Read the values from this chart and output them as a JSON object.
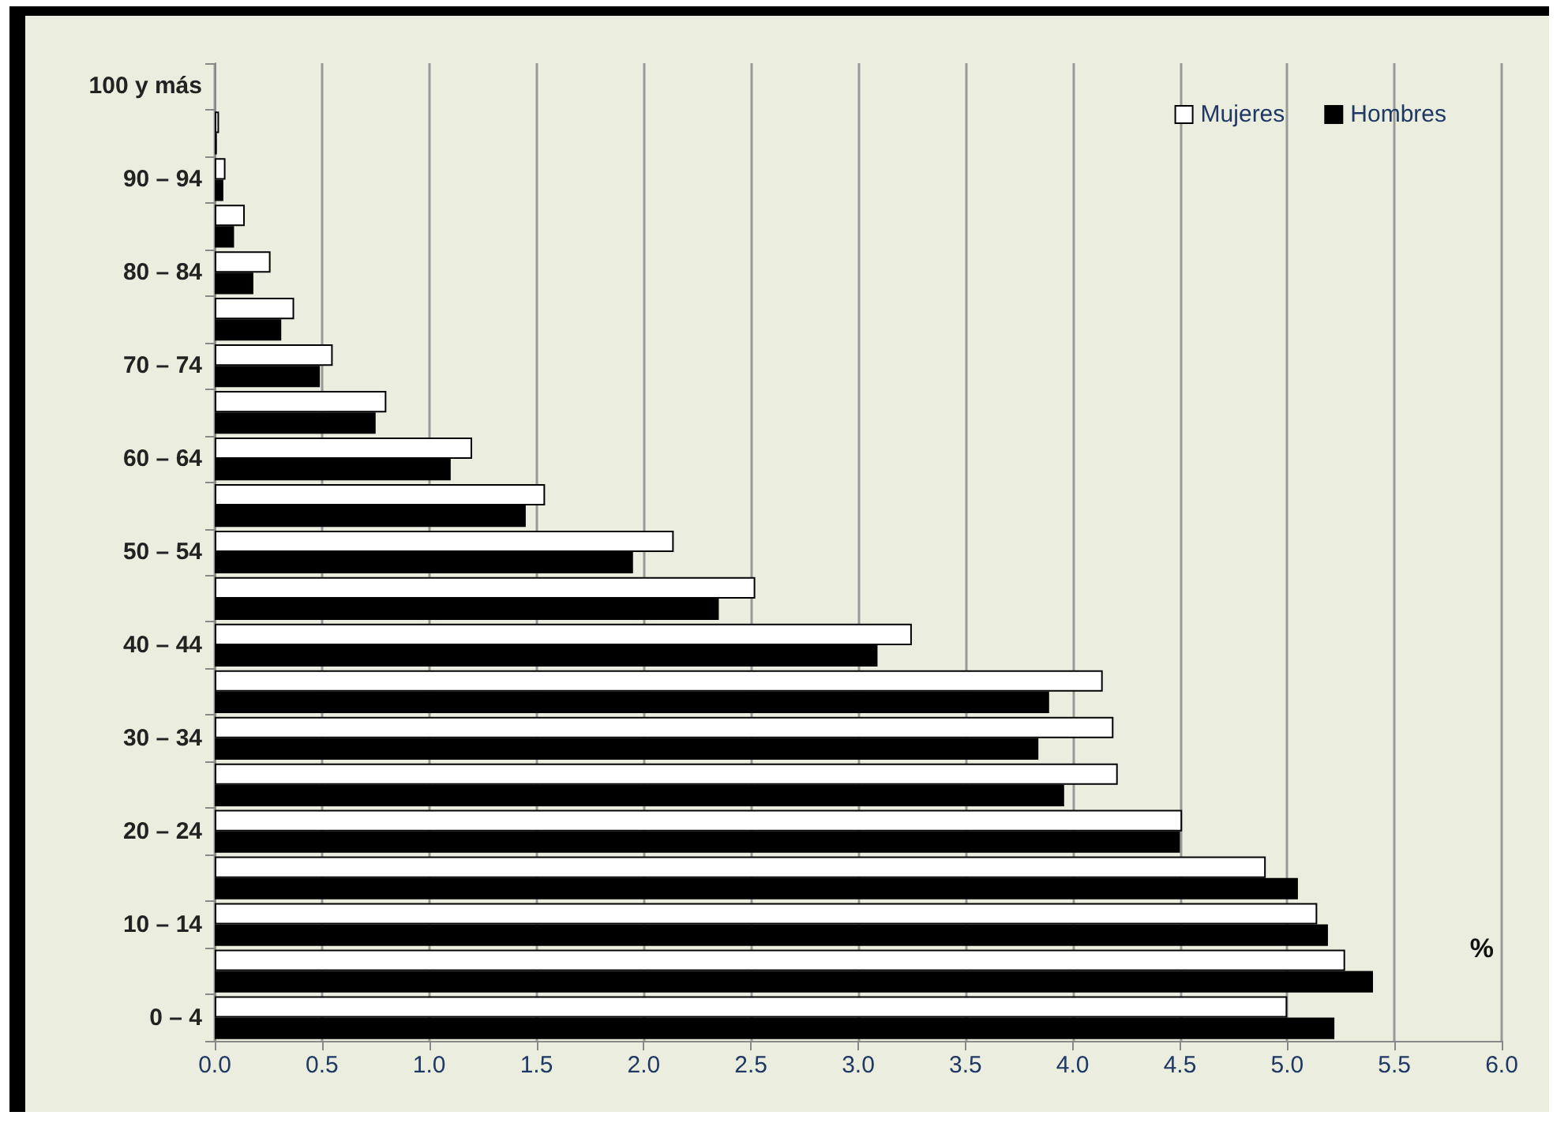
{
  "chart_data": {
    "type": "bar",
    "orientation": "horizontal",
    "categories": [
      "100 y más",
      null,
      "90 – 94",
      null,
      "80 – 84",
      null,
      "70 – 74",
      null,
      "60 – 64",
      null,
      "50 – 54",
      null,
      "40 – 44",
      null,
      "30 – 34",
      null,
      "20 – 24",
      null,
      "10 – 14",
      null,
      "0 – 4"
    ],
    "series": [
      {
        "name": "Mujeres",
        "color": "#ffffff",
        "values": [
          null,
          0.02,
          0.05,
          0.14,
          0.26,
          0.37,
          0.55,
          0.8,
          1.2,
          1.54,
          2.14,
          2.52,
          3.25,
          4.14,
          4.19,
          4.21,
          4.51,
          4.9,
          5.14,
          5.27,
          5.0
        ]
      },
      {
        "name": "Hombres",
        "color": "#000000",
        "values": [
          null,
          0.01,
          0.04,
          0.09,
          0.18,
          0.31,
          0.49,
          0.75,
          1.1,
          1.45,
          1.95,
          2.35,
          3.09,
          3.89,
          3.84,
          3.96,
          4.5,
          5.05,
          5.19,
          5.4,
          5.22
        ]
      }
    ],
    "xlim": [
      0,
      6
    ],
    "xticks": [
      {
        "value": 0,
        "label": "0.0"
      },
      0.5,
      {
        "value": 1,
        "label": "1.0"
      },
      1.5,
      {
        "value": 2,
        "label": "2.0"
      },
      2.5,
      {
        "value": 3,
        "label": "3.0"
      },
      3.5,
      {
        "value": 4,
        "label": "4.0"
      },
      4.5,
      {
        "value": 5,
        "label": "5.0"
      },
      5.5,
      {
        "value": 6,
        "label": "6.0"
      }
    ],
    "grid": "x",
    "legend": "top right",
    "annotations": [
      "%"
    ]
  }
}
